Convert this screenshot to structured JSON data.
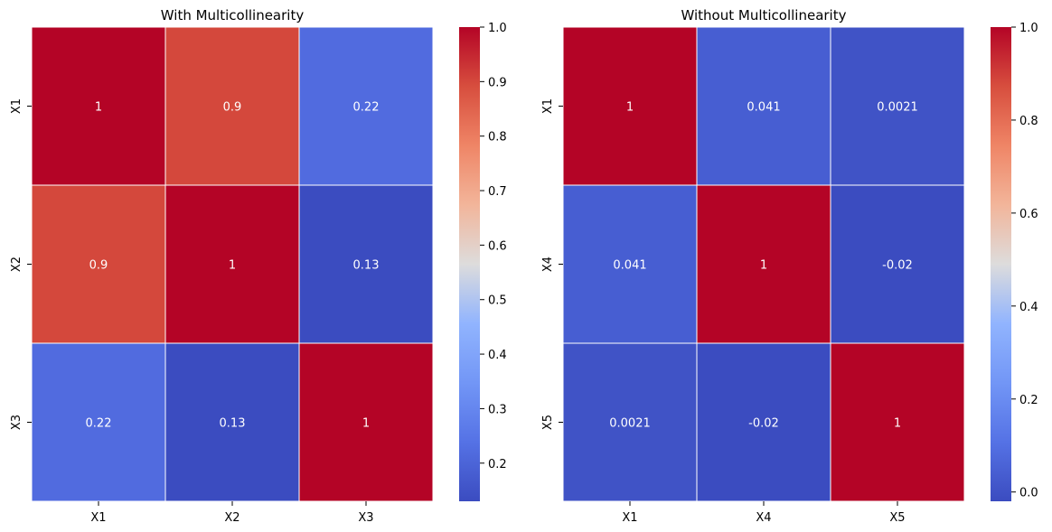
{
  "chart_data": [
    {
      "type": "heatmap",
      "title": "With Multicollinearity",
      "x_labels": [
        "X1",
        "X2",
        "X3"
      ],
      "y_labels": [
        "X1",
        "X2",
        "X3"
      ],
      "values": [
        [
          1,
          0.9,
          0.22
        ],
        [
          0.9,
          1,
          0.13
        ],
        [
          0.22,
          0.13,
          1
        ]
      ],
      "annotations": [
        [
          "1",
          "0.9",
          "0.22"
        ],
        [
          "0.9",
          "1",
          "0.13"
        ],
        [
          "0.22",
          "0.13",
          "1"
        ]
      ],
      "colormap": "coolwarm",
      "color_range": [
        0.13,
        1.0
      ],
      "colorbar_ticks": [
        0.2,
        0.3,
        0.4,
        0.5,
        0.6,
        0.7,
        0.8,
        0.9,
        1.0
      ],
      "colorbar_tick_labels": [
        "0.2",
        "0.3",
        "0.4",
        "0.5",
        "0.6",
        "0.7",
        "0.8",
        "0.9",
        "1.0"
      ]
    },
    {
      "type": "heatmap",
      "title": "Without Multicollinearity",
      "x_labels": [
        "X1",
        "X4",
        "X5"
      ],
      "y_labels": [
        "X1",
        "X4",
        "X5"
      ],
      "values": [
        [
          1,
          0.041,
          0.0021
        ],
        [
          0.041,
          1,
          -0.02
        ],
        [
          0.0021,
          -0.02,
          1
        ]
      ],
      "annotations": [
        [
          "1",
          "0.041",
          "0.0021"
        ],
        [
          "0.041",
          "1",
          "-0.02"
        ],
        [
          "0.0021",
          "-0.02",
          "1"
        ]
      ],
      "colormap": "coolwarm",
      "color_range": [
        -0.02,
        1.0
      ],
      "colorbar_ticks": [
        0.0,
        0.2,
        0.4,
        0.6,
        0.8,
        1.0
      ],
      "colorbar_tick_labels": [
        "0.0",
        "0.2",
        "0.4",
        "0.6",
        "0.8",
        "1.0"
      ]
    }
  ]
}
